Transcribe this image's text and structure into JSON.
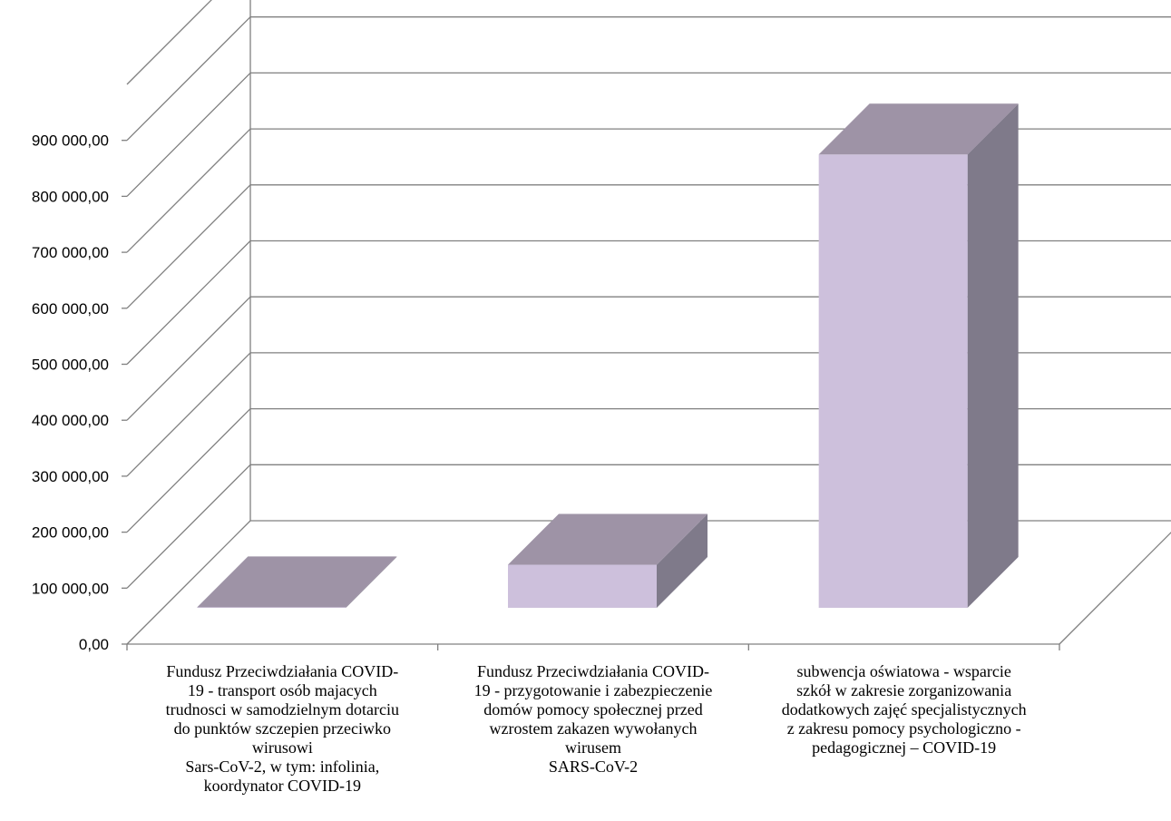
{
  "chart_data": {
    "type": "bar",
    "title": "",
    "xlabel": "",
    "ylabel": "",
    "ylim": [
      0,
      900000
    ],
    "grid": true,
    "legend": "none",
    "y_ticks": [
      "0,00",
      "100 000,00",
      "200 000,00",
      "300 000,00",
      "400 000,00",
      "500 000,00",
      "600 000,00",
      "700 000,00",
      "800 000,00",
      "900 000,00"
    ],
    "categories": [
      {
        "lines": [
          "Fundusz Przeciwdziałania COVID-",
          "19 - transport osób majacych",
          "trudnosci w samodzielnym dotarciu",
          "do punktów szczepien przeciwko",
          "wirusowi",
          "Sars-CoV-2, w tym: infolinia,",
          "koordynator COVID-19"
        ]
      },
      {
        "lines": [
          "Fundusz Przeciwdziałania COVID-",
          "19 - przygotowanie i zabezpieczenie",
          "domów pomocy społecznej przed",
          "wzrostem zakazen wywołanych",
          "wirusem",
          "SARS-CoV-2"
        ]
      },
      {
        "lines": [
          "subwencja oświatowa - wsparcie",
          "szkół w zakresie zorganizowania",
          "dodatkowych zajęć specjalistycznych",
          "z zakresu pomocy psychologiczno -",
          "pedagogicznej – COVID-19"
        ]
      }
    ],
    "values": [
      1000,
      77000,
      810000
    ],
    "colors": {
      "front": "#cdc0dc",
      "top": "#9e93a6",
      "side": "#7f7a8a",
      "grid": "#808080"
    }
  }
}
